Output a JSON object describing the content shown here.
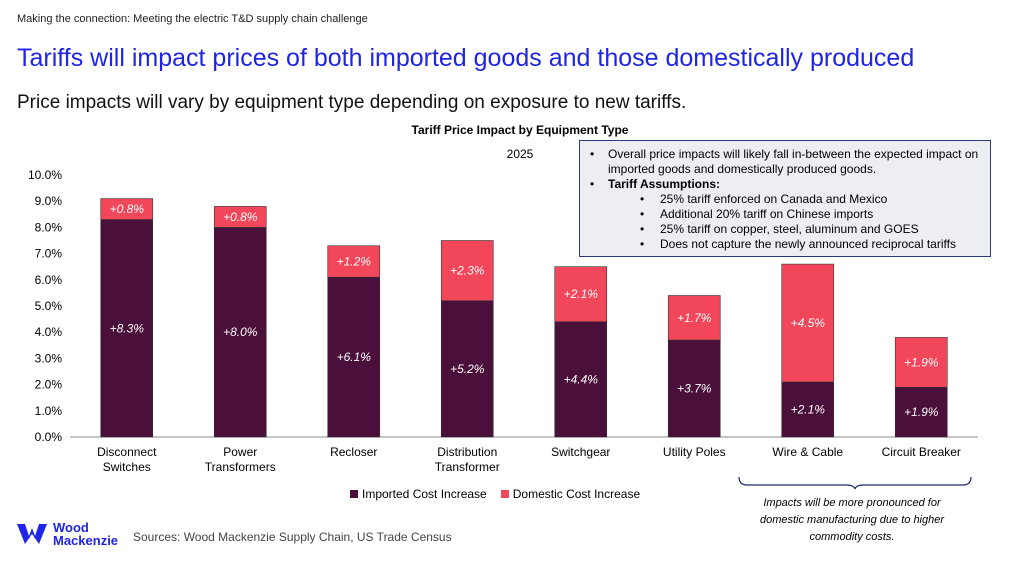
{
  "header": {
    "eyebrow": "Making the connection: Meeting the electric T&D supply chain challenge",
    "headline": "Tariffs will impact prices of both imported goods and those domestically produced",
    "subhead": "Price impacts will vary by equipment type depending on exposure to new tariffs."
  },
  "chart_data": {
    "type": "bar",
    "stacked": true,
    "title": "Tariff Price Impact by Equipment Type",
    "subtitle": "2025",
    "categories": [
      "Disconnect Switches",
      "Power Transformers",
      "Recloser",
      "Distribution Transformer",
      "Switchgear",
      "Utility Poles",
      "Wire & Cable",
      "Circuit Breaker"
    ],
    "category_lines": [
      [
        "Disconnect",
        "Switches"
      ],
      [
        "Power",
        "Transformers"
      ],
      [
        "Recloser"
      ],
      [
        "Distribution",
        "Transformer"
      ],
      [
        "Switchgear"
      ],
      [
        "Utility Poles"
      ],
      [
        "Wire & Cable"
      ],
      [
        "Circuit Breaker"
      ]
    ],
    "series": [
      {
        "name": "Imported Cost Increase",
        "color": "#4a0f3a",
        "values": [
          8.3,
          8.0,
          6.1,
          5.2,
          4.4,
          3.7,
          2.1,
          1.9
        ],
        "labels": [
          "+8.3%",
          "+8.0%",
          "+6.1%",
          "+5.2%",
          "+4.4%",
          "+3.7%",
          "+2.1%",
          "+1.9%"
        ]
      },
      {
        "name": "Domestic Cost Increase",
        "color": "#f2465a",
        "values": [
          0.8,
          0.8,
          1.2,
          2.3,
          2.1,
          1.7,
          4.5,
          1.9
        ],
        "labels": [
          "+0.8%",
          "+0.8%",
          "+1.2%",
          "+2.3%",
          "+2.1%",
          "+1.7%",
          "+4.5%",
          "+1.9%"
        ]
      }
    ],
    "ylim": [
      0,
      10
    ],
    "yticks": [
      "0.0%",
      "1.0%",
      "2.0%",
      "3.0%",
      "4.0%",
      "5.0%",
      "6.0%",
      "7.0%",
      "8.0%",
      "9.0%",
      "10.0%"
    ],
    "grid": false,
    "legend": "bottom"
  },
  "infobox": {
    "line1": "Overall price impacts will likely fall in-between the expected impact on imported goods and domestically produced goods.",
    "heading": "Tariff Assumptions:",
    "items": [
      "25% tariff enforced on Canada and Mexico",
      "Additional 20% tariff on Chinese imports",
      "25% tariff on copper, steel, aluminum and GOES",
      "Does not capture the newly announced reciprocal tariffs"
    ],
    "bullet": "•"
  },
  "note": "Impacts will be more pronounced for domestic manufacturing due to higher commodity costs.",
  "logo": {
    "line1": "Wood",
    "line2": "Mackenzie",
    "color": "#1f24e6"
  },
  "source": "Sources: Wood Mackenzie Supply Chain, US Trade Census"
}
